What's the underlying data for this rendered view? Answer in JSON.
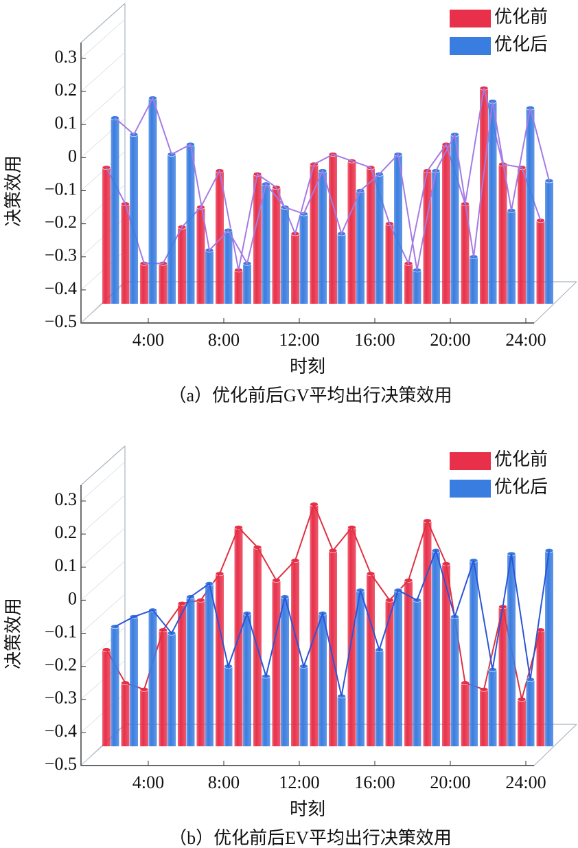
{
  "chart_data": [
    {
      "type": "bar3d",
      "title": "（a）优化前后GV平均出行决策效用",
      "x_label": "时刻",
      "y_label": "决策效用",
      "categories": [
        null,
        null,
        "4:00",
        null,
        null,
        null,
        "8:00",
        null,
        null,
        null,
        "12:00",
        null,
        null,
        null,
        "16:00",
        null,
        null,
        null,
        "20:00",
        null,
        null,
        null,
        "24:00",
        null
      ],
      "ylim": [
        -0.5,
        0.3
      ],
      "yticks": [
        {
          "value": -0.5,
          "label": "−0.5"
        },
        {
          "value": -0.4,
          "label": "−0.4"
        },
        {
          "value": -0.3,
          "label": "−0.3"
        },
        {
          "value": -0.2,
          "label": "−0.2"
        },
        {
          "value": -0.1,
          "label": "−0.1"
        },
        0,
        0.1,
        0.2,
        0.3
      ],
      "series": [
        {
          "name": "优化前",
          "color": "#e8304a",
          "line_color": "#a47ae6",
          "values": [
            -0.03,
            -0.14,
            -0.32,
            -0.32,
            -0.21,
            -0.15,
            -0.04,
            -0.34,
            -0.05,
            -0.09,
            -0.23,
            -0.02,
            0.01,
            -0.01,
            -0.03,
            -0.2,
            -0.32,
            -0.04,
            0.04,
            -0.14,
            0.21,
            -0.02,
            -0.03,
            -0.19
          ]
        },
        {
          "name": "优化后",
          "color": "#3a7de0",
          "line_color": "#a47ae6",
          "values": [
            0.12,
            0.07,
            0.18,
            0.01,
            0.04,
            -0.28,
            -0.22,
            -0.32,
            -0.08,
            -0.15,
            -0.17,
            -0.04,
            -0.23,
            -0.1,
            -0.05,
            0.01,
            -0.34,
            -0.04,
            0.07,
            -0.3,
            0.17,
            -0.16,
            0.15,
            -0.07
          ]
        }
      ]
    },
    {
      "type": "bar3d",
      "title": "（b）优化前后EV平均出行决策效用",
      "x_label": "时刻",
      "y_label": "决策效用",
      "categories": [
        null,
        null,
        "4:00",
        null,
        null,
        null,
        "8:00",
        null,
        null,
        null,
        "12:00",
        null,
        null,
        null,
        "16:00",
        null,
        null,
        null,
        "20:00",
        null,
        null,
        null,
        "24:00",
        null
      ],
      "ylim": [
        -0.5,
        0.3
      ],
      "yticks": [
        {
          "value": -0.5,
          "label": "−0.5"
        },
        {
          "value": -0.4,
          "label": "−0.4"
        },
        {
          "value": -0.3,
          "label": "−0.3"
        },
        {
          "value": -0.2,
          "label": "−0.2"
        },
        {
          "value": -0.1,
          "label": "−0.1"
        },
        0,
        0.1,
        0.2,
        0.3
      ],
      "series": [
        {
          "name": "优化前",
          "color": "#e8304a",
          "line_color": "#e03040",
          "values": [
            -0.15,
            -0.25,
            -0.27,
            -0.09,
            -0.01,
            0.0,
            0.08,
            0.22,
            0.16,
            0.06,
            0.12,
            0.29,
            0.15,
            0.22,
            0.08,
            0.0,
            0.06,
            0.24,
            0.11,
            -0.25,
            -0.27,
            -0.02,
            -0.3,
            -0.09
          ]
        },
        {
          "name": "优化后",
          "color": "#3a7de0",
          "line_color": "#2a55d8",
          "values": [
            -0.08,
            -0.05,
            -0.03,
            -0.1,
            0.01,
            0.05,
            -0.2,
            -0.04,
            -0.23,
            0.01,
            -0.2,
            -0.04,
            -0.29,
            0.03,
            -0.15,
            0.03,
            0.0,
            0.15,
            -0.05,
            0.12,
            -0.21,
            0.14,
            -0.24,
            0.15
          ]
        }
      ]
    }
  ]
}
